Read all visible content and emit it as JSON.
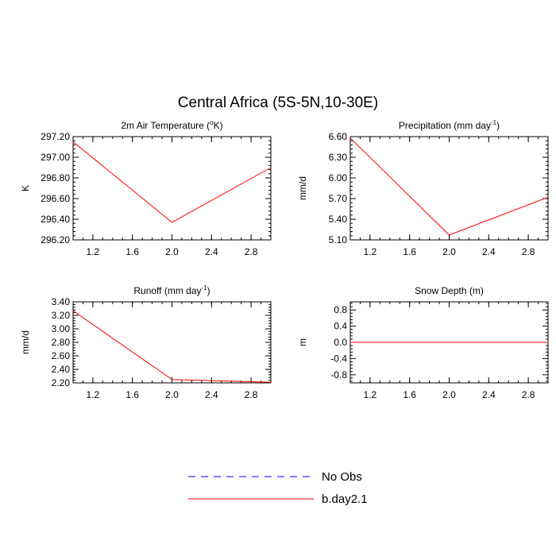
{
  "main_title": "Central Africa (5S-5N,10-30E)",
  "legend": [
    {
      "label": "No Obs",
      "color": "#0000ff",
      "dash": true
    },
    {
      "label": "b.day2.1",
      "color": "#ff0000",
      "dash": false
    }
  ],
  "chart_data": [
    {
      "type": "line",
      "title_main": "2m Air Temperature (",
      "title_sup": "o",
      "title_tail": "K)",
      "ylabel": "K",
      "xlim": [
        1.0,
        3.0
      ],
      "ylim": [
        296.2,
        297.2
      ],
      "xticks": [
        "1.2",
        "1.6",
        "2.0",
        "2.4",
        "2.8"
      ],
      "yticks": [
        "296.20",
        "296.40",
        "296.60",
        "296.80",
        "297.00",
        "297.20"
      ],
      "x": [
        1.0,
        2.0,
        3.0
      ],
      "series": [
        {
          "name": "b.day2.1",
          "color": "#ff0000",
          "values": [
            297.15,
            296.37,
            296.9
          ]
        }
      ]
    },
    {
      "type": "line",
      "title_main": "Precipitation (mm day",
      "title_sup": "-1",
      "title_tail": ")",
      "ylabel": "mm/d",
      "xlim": [
        1.0,
        3.0
      ],
      "ylim": [
        5.1,
        6.6
      ],
      "xticks": [
        "1.2",
        "1.6",
        "2.0",
        "2.4",
        "2.8"
      ],
      "yticks": [
        "5.10",
        "5.40",
        "5.70",
        "6.00",
        "6.30",
        "6.60"
      ],
      "x": [
        1.0,
        2.0,
        3.0
      ],
      "series": [
        {
          "name": "b.day2.1",
          "color": "#ff0000",
          "values": [
            6.58,
            5.17,
            5.72
          ]
        }
      ]
    },
    {
      "type": "line",
      "title_main": "Runoff (mm day",
      "title_sup": "-1",
      "title_tail": ")",
      "ylabel": "mm/d",
      "xlim": [
        1.0,
        3.0
      ],
      "ylim": [
        2.2,
        3.4
      ],
      "xticks": [
        "1.2",
        "1.6",
        "2.0",
        "2.4",
        "2.8"
      ],
      "yticks": [
        "2.20",
        "2.40",
        "2.60",
        "2.80",
        "3.00",
        "3.20",
        "3.40"
      ],
      "x": [
        1.0,
        2.0,
        3.0
      ],
      "series": [
        {
          "name": "b.day2.1",
          "color": "#ff0000",
          "values": [
            3.27,
            2.25,
            2.21
          ]
        }
      ]
    },
    {
      "type": "line",
      "title_main": "Snow Depth (m)",
      "title_sup": "",
      "title_tail": "",
      "ylabel": "m",
      "xlim": [
        1.0,
        3.0
      ],
      "ylim": [
        -1.0,
        1.0
      ],
      "xticks": [
        "1.2",
        "1.6",
        "2.0",
        "2.4",
        "2.8"
      ],
      "yticks": [
        "-0.8",
        "-0.4",
        "0.0",
        "0.4",
        "0.8"
      ],
      "x": [
        1.0,
        2.0,
        3.0
      ],
      "series": [
        {
          "name": "b.day2.1",
          "color": "#ff0000",
          "values": [
            0.0,
            0.0,
            0.0
          ]
        }
      ]
    }
  ]
}
